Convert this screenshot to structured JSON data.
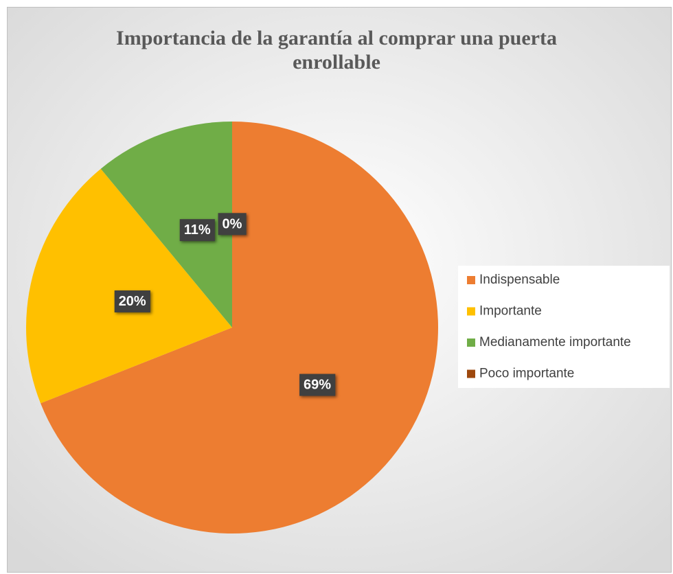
{
  "chart_data": {
    "type": "pie",
    "title": "Importancia de la garantía al comprar una puerta enrollable",
    "categories": [
      "Indispensable",
      "Importante",
      "Medianamente importante",
      "Poco importante"
    ],
    "values": [
      69,
      20,
      11,
      0
    ],
    "value_labels": [
      "69%",
      "20%",
      "11%",
      "0%"
    ],
    "colors": [
      "#ed7d31",
      "#ffc000",
      "#70ad47",
      "#9e480e"
    ],
    "legend": "right"
  }
}
